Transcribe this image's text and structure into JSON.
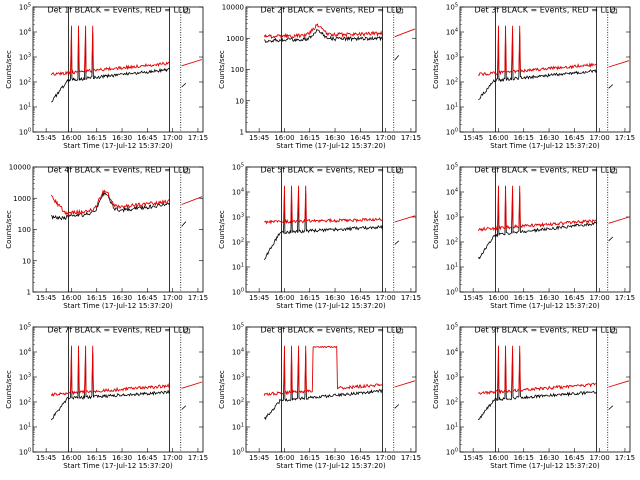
{
  "chart_data": [
    {
      "type": "line",
      "title": "Det 1f BLACK = Events, RED = LLD",
      "xlabel": "Start Time (17-Jul-12 15:37:20)",
      "ylabel": "Counts/sec",
      "x_ticks": [
        "15:45",
        "16:00",
        "16:15",
        "16:30",
        "16:45",
        "17:00",
        "17:15"
      ],
      "y_scale": "log",
      "ylim": [
        1,
        100000
      ],
      "y_ticks": [
        {
          "base": "10",
          "exp": "0"
        },
        {
          "base": "10",
          "exp": "1"
        },
        {
          "base": "10",
          "exp": "2"
        },
        {
          "base": "10",
          "exp": "3"
        },
        {
          "base": "10",
          "exp": "4"
        },
        {
          "base": "10",
          "exp": "5"
        }
      ],
      "series": [
        {
          "color": "#000000"
        },
        {
          "color": "#e00000"
        }
      ]
    },
    {
      "type": "line",
      "title": "Det 2f BLACK = Events, RED = LLD",
      "xlabel": "Start Time (17-Jul-12 15:37:20)",
      "ylabel": "Counts/sec",
      "x_ticks": [
        "15:45",
        "16:00",
        "16:15",
        "16:30",
        "16:45",
        "17:00",
        "17:15"
      ],
      "y_scale": "log",
      "ylim": [
        1,
        10000
      ],
      "y_ticks": [
        {
          "base": "1",
          "exp": ""
        },
        {
          "base": "10",
          "exp": ""
        },
        {
          "base": "100",
          "exp": ""
        },
        {
          "base": "1000",
          "exp": ""
        },
        {
          "base": "10000",
          "exp": ""
        }
      ],
      "series": [
        {
          "color": "#000000"
        },
        {
          "color": "#e00000"
        }
      ]
    },
    {
      "type": "line",
      "title": "Det 3f BLACK = Events, RED = LLD",
      "xlabel": "Start Time (17-Jul-12 15:37:20)",
      "ylabel": "Counts/sec",
      "x_ticks": [
        "15:45",
        "16:00",
        "16:15",
        "16:30",
        "16:45",
        "17:00",
        "17:15"
      ],
      "y_scale": "log",
      "ylim": [
        1,
        100000
      ],
      "y_ticks": [
        {
          "base": "10",
          "exp": "0"
        },
        {
          "base": "10",
          "exp": "1"
        },
        {
          "base": "10",
          "exp": "2"
        },
        {
          "base": "10",
          "exp": "3"
        },
        {
          "base": "10",
          "exp": "4"
        },
        {
          "base": "10",
          "exp": "5"
        }
      ],
      "series": [
        {
          "color": "#000000"
        },
        {
          "color": "#e00000"
        }
      ]
    },
    {
      "type": "line",
      "title": "Det 4f BLACK = Events, RED = LLD",
      "xlabel": "Start Time (17-Jul-12 15:37:20)",
      "ylabel": "Counts/sec",
      "x_ticks": [
        "15:45",
        "16:00",
        "16:15",
        "16:30",
        "16:45",
        "17:00",
        "17:15"
      ],
      "y_scale": "log",
      "ylim": [
        1,
        10000
      ],
      "y_ticks": [
        {
          "base": "1",
          "exp": ""
        },
        {
          "base": "10",
          "exp": ""
        },
        {
          "base": "100",
          "exp": ""
        },
        {
          "base": "1000",
          "exp": ""
        },
        {
          "base": "10000",
          "exp": ""
        }
      ],
      "series": [
        {
          "color": "#000000"
        },
        {
          "color": "#e00000"
        }
      ]
    },
    {
      "type": "line",
      "title": "Det 5f BLACK = Events, RED = LLD",
      "xlabel": "Start Time (17-Jul-12 15:37:20)",
      "ylabel": "Counts/sec",
      "x_ticks": [
        "15:45",
        "16:00",
        "16:15",
        "16:30",
        "16:45",
        "17:00",
        "17:15"
      ],
      "y_scale": "log",
      "ylim": [
        1,
        100000
      ],
      "y_ticks": [
        {
          "base": "10",
          "exp": "0"
        },
        {
          "base": "10",
          "exp": "1"
        },
        {
          "base": "10",
          "exp": "2"
        },
        {
          "base": "10",
          "exp": "3"
        },
        {
          "base": "10",
          "exp": "4"
        },
        {
          "base": "10",
          "exp": "5"
        }
      ],
      "series": [
        {
          "color": "#000000"
        },
        {
          "color": "#e00000"
        }
      ]
    },
    {
      "type": "line",
      "title": "Det 6f BLACK = Events, RED = LLD",
      "xlabel": "Start Time (17-Jul-12 15:37:20)",
      "ylabel": "Counts/sec",
      "x_ticks": [
        "15:45",
        "16:00",
        "16:15",
        "16:30",
        "16:45",
        "17:00",
        "17:15"
      ],
      "y_scale": "log",
      "ylim": [
        1,
        100000
      ],
      "y_ticks": [
        {
          "base": "10",
          "exp": "0"
        },
        {
          "base": "10",
          "exp": "1"
        },
        {
          "base": "10",
          "exp": "2"
        },
        {
          "base": "10",
          "exp": "3"
        },
        {
          "base": "10",
          "exp": "4"
        },
        {
          "base": "10",
          "exp": "5"
        }
      ],
      "series": [
        {
          "color": "#000000"
        },
        {
          "color": "#e00000"
        }
      ]
    },
    {
      "type": "line",
      "title": "Det 7f BLACK = Events, RED = LLD",
      "xlabel": "Start Time (17-Jul-12 15:37:20)",
      "ylabel": "Counts/sec",
      "x_ticks": [
        "15:45",
        "16:00",
        "16:15",
        "16:30",
        "16:45",
        "17:00",
        "17:15"
      ],
      "y_scale": "log",
      "ylim": [
        1,
        100000
      ],
      "y_ticks": [
        {
          "base": "10",
          "exp": "0"
        },
        {
          "base": "10",
          "exp": "1"
        },
        {
          "base": "10",
          "exp": "2"
        },
        {
          "base": "10",
          "exp": "3"
        },
        {
          "base": "10",
          "exp": "4"
        },
        {
          "base": "10",
          "exp": "5"
        }
      ],
      "series": [
        {
          "color": "#000000"
        },
        {
          "color": "#e00000"
        }
      ]
    },
    {
      "type": "line",
      "title": "Det 8f BLACK = Events, RED = LLD",
      "xlabel": "Start Time (17-Jul-12 15:37:20)",
      "ylabel": "Counts/sec",
      "x_ticks": [
        "15:45",
        "16:00",
        "16:15",
        "16:30",
        "16:45",
        "17:00",
        "17:15"
      ],
      "y_scale": "log",
      "ylim": [
        1,
        100000
      ],
      "y_ticks": [
        {
          "base": "10",
          "exp": "0"
        },
        {
          "base": "10",
          "exp": "1"
        },
        {
          "base": "10",
          "exp": "2"
        },
        {
          "base": "10",
          "exp": "3"
        },
        {
          "base": "10",
          "exp": "4"
        },
        {
          "base": "10",
          "exp": "5"
        }
      ],
      "series": [
        {
          "color": "#000000"
        },
        {
          "color": "#e00000"
        }
      ]
    },
    {
      "type": "line",
      "title": "Det 9f BLACK = Events, RED = LLD",
      "xlabel": "Start Time (17-Jul-12 15:37:20)",
      "ylabel": "Counts/sec",
      "x_ticks": [
        "15:45",
        "16:00",
        "16:15",
        "16:30",
        "16:45",
        "17:00",
        "17:15"
      ],
      "y_scale": "log",
      "ylim": [
        1,
        100000
      ],
      "y_ticks": [
        {
          "base": "10",
          "exp": "0"
        },
        {
          "base": "10",
          "exp": "1"
        },
        {
          "base": "10",
          "exp": "2"
        },
        {
          "base": "10",
          "exp": "3"
        },
        {
          "base": "10",
          "exp": "4"
        },
        {
          "base": "10",
          "exp": "5"
        }
      ],
      "series": [
        {
          "color": "#000000"
        },
        {
          "color": "#e00000"
        }
      ]
    }
  ]
}
